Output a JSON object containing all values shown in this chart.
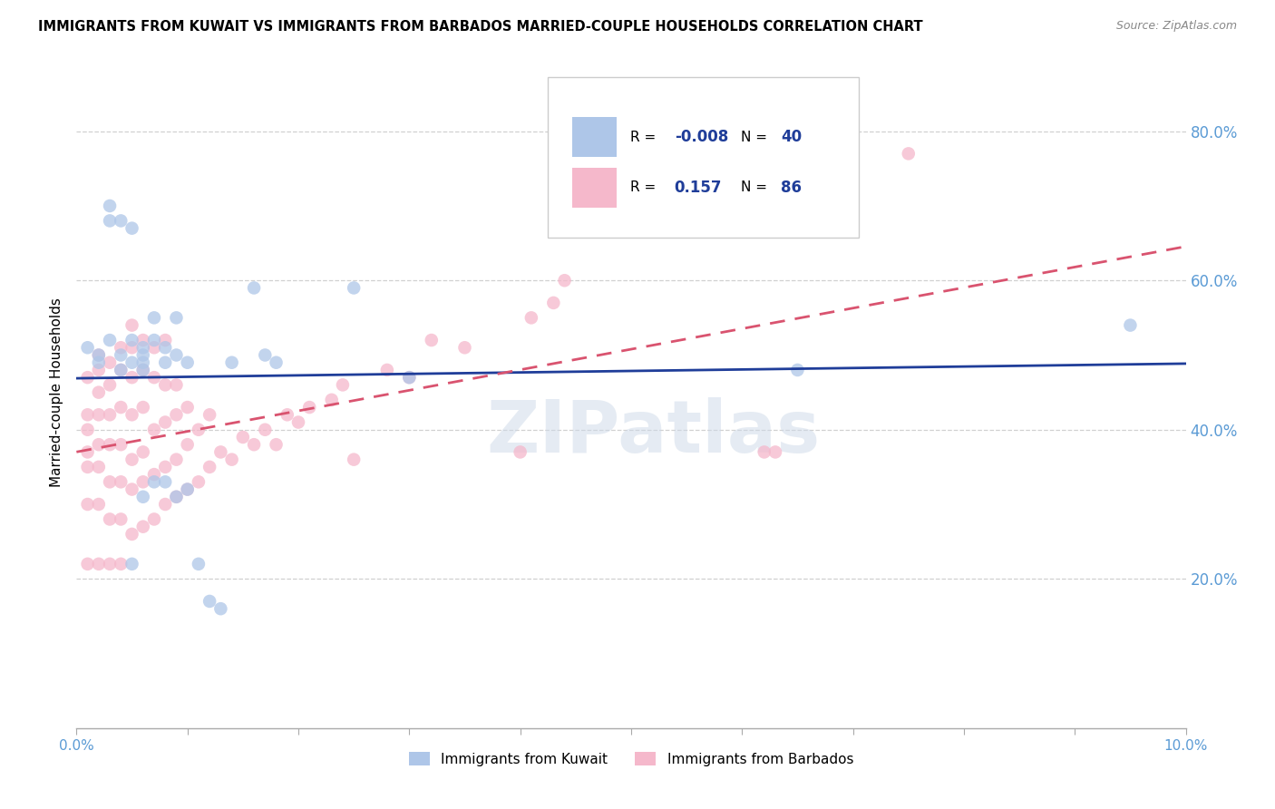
{
  "title": "IMMIGRANTS FROM KUWAIT VS IMMIGRANTS FROM BARBADOS MARRIED-COUPLE HOUSEHOLDS CORRELATION CHART",
  "source": "Source: ZipAtlas.com",
  "ylabel": "Married-couple Households",
  "xlim": [
    0.0,
    0.1
  ],
  "ylim": [
    0.0,
    0.9
  ],
  "xticks": [
    0.0,
    0.01,
    0.02,
    0.03,
    0.04,
    0.05,
    0.06,
    0.07,
    0.08,
    0.09,
    0.1
  ],
  "xticklabels_show": [
    "0.0%",
    "",
    "",
    "",
    "",
    "",
    "",
    "",
    "",
    "",
    "10.0%"
  ],
  "yticks_right": [
    0.2,
    0.4,
    0.6,
    0.8
  ],
  "yticklabels_right": [
    "20.0%",
    "40.0%",
    "60.0%",
    "80.0%"
  ],
  "legend_R_kuwait": "-0.008",
  "legend_N_kuwait": "40",
  "legend_R_barbados": "0.157",
  "legend_N_barbados": "86",
  "color_kuwait": "#aec6e8",
  "color_barbados": "#f5b8cb",
  "trend_kuwait_color": "#1f3d99",
  "trend_barbados_color": "#d9536f",
  "watermark": "ZIPatlas",
  "kuwait_x": [
    0.001,
    0.002,
    0.002,
    0.003,
    0.003,
    0.003,
    0.004,
    0.004,
    0.004,
    0.005,
    0.005,
    0.005,
    0.005,
    0.006,
    0.006,
    0.006,
    0.006,
    0.006,
    0.007,
    0.007,
    0.007,
    0.008,
    0.008,
    0.008,
    0.009,
    0.009,
    0.009,
    0.01,
    0.01,
    0.011,
    0.012,
    0.013,
    0.014,
    0.016,
    0.017,
    0.018,
    0.025,
    0.03,
    0.065,
    0.095
  ],
  "kuwait_y": [
    0.51,
    0.5,
    0.49,
    0.7,
    0.68,
    0.52,
    0.68,
    0.5,
    0.48,
    0.67,
    0.52,
    0.49,
    0.22,
    0.51,
    0.5,
    0.49,
    0.48,
    0.31,
    0.55,
    0.52,
    0.33,
    0.51,
    0.49,
    0.33,
    0.55,
    0.5,
    0.31,
    0.49,
    0.32,
    0.22,
    0.17,
    0.16,
    0.49,
    0.59,
    0.5,
    0.49,
    0.59,
    0.47,
    0.48,
    0.54
  ],
  "barbados_x": [
    0.001,
    0.001,
    0.001,
    0.001,
    0.001,
    0.001,
    0.001,
    0.002,
    0.002,
    0.002,
    0.002,
    0.002,
    0.002,
    0.002,
    0.002,
    0.003,
    0.003,
    0.003,
    0.003,
    0.003,
    0.003,
    0.003,
    0.004,
    0.004,
    0.004,
    0.004,
    0.004,
    0.004,
    0.004,
    0.005,
    0.005,
    0.005,
    0.005,
    0.005,
    0.005,
    0.005,
    0.006,
    0.006,
    0.006,
    0.006,
    0.006,
    0.006,
    0.007,
    0.007,
    0.007,
    0.007,
    0.007,
    0.008,
    0.008,
    0.008,
    0.008,
    0.008,
    0.009,
    0.009,
    0.009,
    0.009,
    0.01,
    0.01,
    0.01,
    0.011,
    0.011,
    0.012,
    0.012,
    0.013,
    0.014,
    0.015,
    0.016,
    0.017,
    0.018,
    0.019,
    0.02,
    0.021,
    0.023,
    0.024,
    0.025,
    0.028,
    0.03,
    0.032,
    0.035,
    0.04,
    0.041,
    0.043,
    0.044,
    0.062,
    0.063,
    0.075
  ],
  "barbados_y": [
    0.22,
    0.3,
    0.35,
    0.37,
    0.4,
    0.42,
    0.47,
    0.22,
    0.3,
    0.35,
    0.38,
    0.42,
    0.45,
    0.48,
    0.5,
    0.22,
    0.28,
    0.33,
    0.38,
    0.42,
    0.46,
    0.49,
    0.22,
    0.28,
    0.33,
    0.38,
    0.43,
    0.48,
    0.51,
    0.26,
    0.32,
    0.36,
    0.42,
    0.47,
    0.51,
    0.54,
    0.27,
    0.33,
    0.37,
    0.43,
    0.48,
    0.52,
    0.28,
    0.34,
    0.4,
    0.47,
    0.51,
    0.3,
    0.35,
    0.41,
    0.46,
    0.52,
    0.31,
    0.36,
    0.42,
    0.46,
    0.32,
    0.38,
    0.43,
    0.33,
    0.4,
    0.35,
    0.42,
    0.37,
    0.36,
    0.39,
    0.38,
    0.4,
    0.38,
    0.42,
    0.41,
    0.43,
    0.44,
    0.46,
    0.36,
    0.48,
    0.47,
    0.52,
    0.51,
    0.37,
    0.55,
    0.57,
    0.6,
    0.37,
    0.37,
    0.77
  ],
  "background_color": "#ffffff",
  "grid_color": "#d0d0d0",
  "title_fontsize": 10.5,
  "tick_label_color_right": "#5b9bd5",
  "tick_label_color_bottom": "#5b9bd5"
}
